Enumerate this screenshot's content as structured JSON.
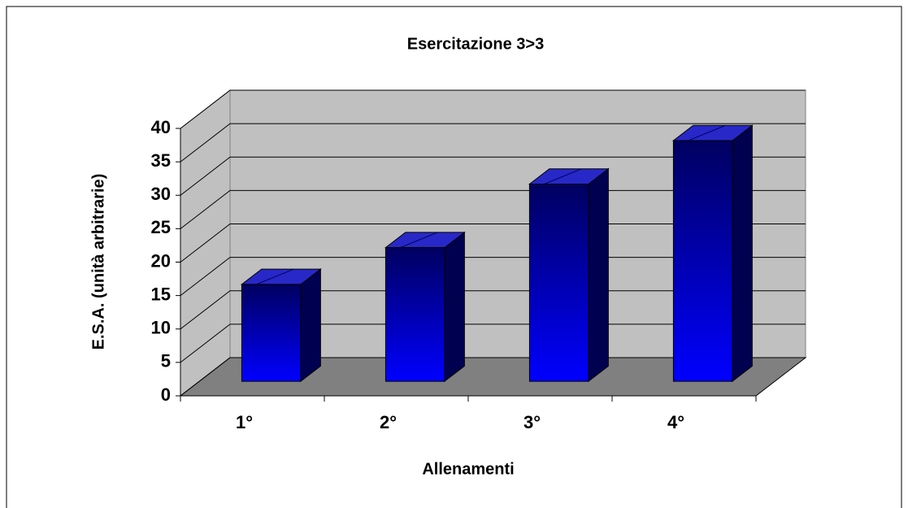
{
  "chart_data": {
    "type": "bar3d",
    "title": "Esercitazione 3>3",
    "x_label": "Allenamenti",
    "y_label": "E.S.A. (unità arbitrarie)",
    "categories": [
      "1°",
      "2°",
      "3°",
      "4°"
    ],
    "values": [
      14.5,
      20,
      29.5,
      36
    ],
    "color": "#0000ff",
    "ylim": [
      0,
      40
    ],
    "yticks": [
      0,
      5,
      10,
      15,
      20,
      25,
      30,
      35,
      40
    ],
    "grid": true
  }
}
